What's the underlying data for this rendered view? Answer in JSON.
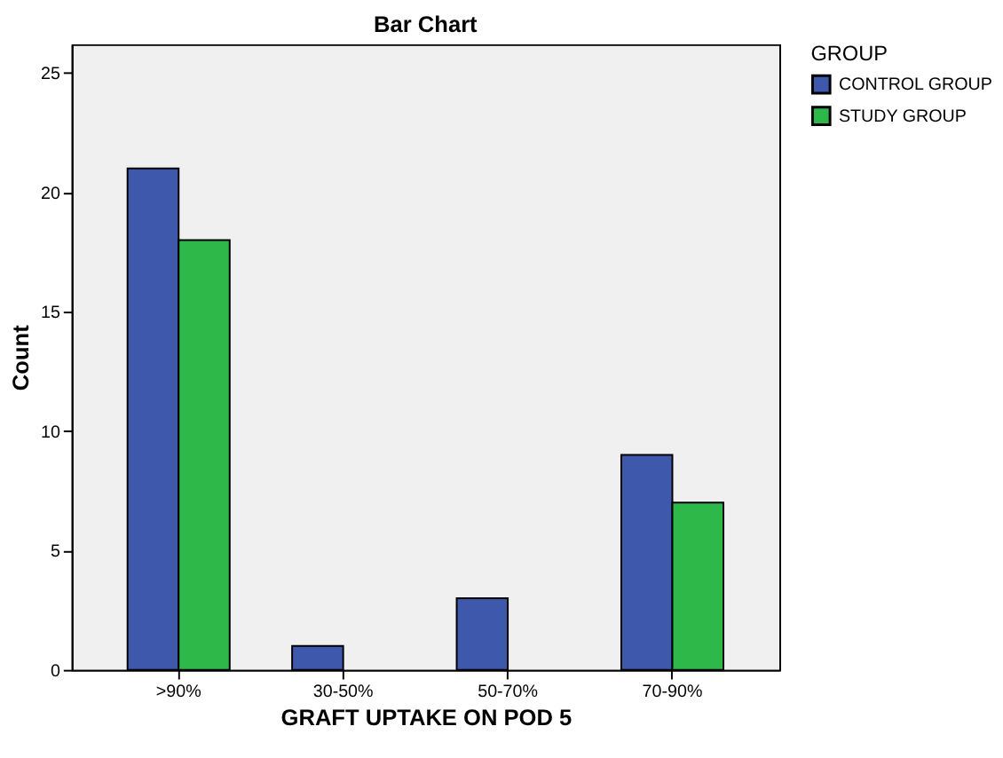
{
  "chart_data": {
    "type": "bar",
    "title": "Bar Chart",
    "xlabel": "GRAFT UPTAKE ON POD 5",
    "ylabel": "Count",
    "legend_title": "GROUP",
    "categories": [
      ">90%",
      "30-50%",
      "50-70%",
      "70-90%"
    ],
    "series": [
      {
        "name": "CONTROL GROUP",
        "color": "#3e58ac",
        "values": [
          21,
          1,
          3,
          9
        ]
      },
      {
        "name": "STUDY GROUP",
        "color": "#2eb84a",
        "values": [
          18,
          null,
          null,
          7
        ]
      }
    ],
    "ylim": [
      0,
      26.2
    ],
    "yticks": [
      0,
      5,
      10,
      15,
      20,
      25
    ],
    "grid": false,
    "legend": "top right"
  }
}
